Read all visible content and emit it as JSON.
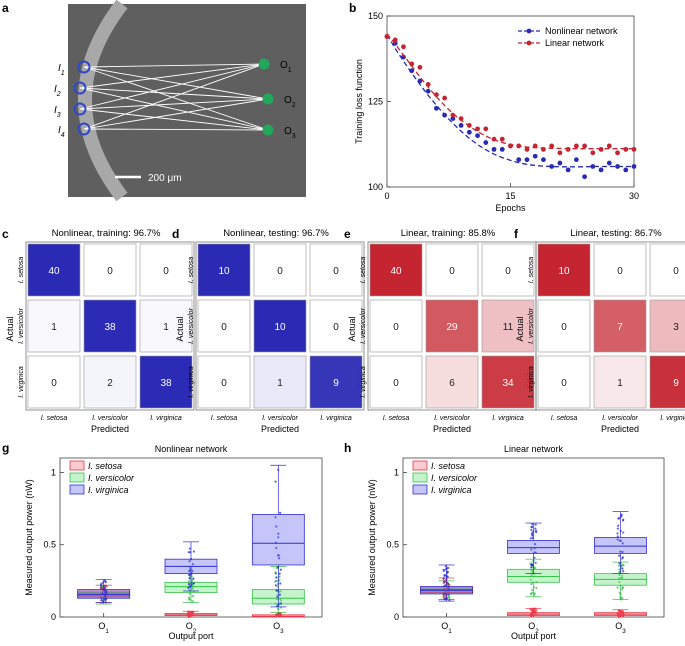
{
  "panels": {
    "a": "a",
    "b": "b",
    "c": "c",
    "d": "d",
    "e": "e",
    "f": "f",
    "g": "g",
    "h": "h"
  },
  "micro": {
    "inputs": [
      "I",
      "I",
      "I",
      "I"
    ],
    "input_subs": [
      "1",
      "2",
      "3",
      "4"
    ],
    "outputs": [
      "O",
      "O",
      "O"
    ],
    "output_subs": [
      "1",
      "2",
      "3"
    ],
    "scalebar": "200 μm"
  },
  "colors": {
    "nonlinear": "#2a2ab5",
    "linear": "#c52530",
    "setosa": "#e8384a",
    "versicolor": "#37c24a",
    "virginica": "#2f2fd6"
  },
  "chart_data": [
    {
      "id": "b",
      "type": "scatter",
      "xlabel": "Epochs",
      "ylabel": "Training loss function",
      "xlim": [
        0,
        30
      ],
      "ylim": [
        100,
        150
      ],
      "xticks": [
        0,
        15,
        30
      ],
      "yticks": [
        100,
        125,
        150
      ],
      "series": [
        {
          "name": "Nonlinear network",
          "values": [
            144,
            142,
            138,
            134,
            131,
            128,
            123,
            121,
            120,
            118,
            116,
            115,
            113,
            111,
            111,
            112,
            108,
            108,
            109,
            108,
            106,
            107,
            105,
            108,
            103,
            106,
            105,
            107,
            106,
            105,
            106
          ],
          "fit": [
            144.5,
            140.5,
            136.8,
            133.3,
            130.0,
            126.8,
            123.9,
            121.1,
            118.6,
            116.3,
            114.2,
            112.4,
            110.9,
            109.6,
            108.6,
            107.8,
            107.1,
            106.6,
            106.3,
            106.1,
            106.0,
            105.9,
            105.9,
            105.9,
            105.9,
            106.0,
            106.0,
            106.0,
            106.0,
            106.0,
            106.0
          ]
        },
        {
          "name": "Linear network",
          "values": [
            144,
            143,
            141,
            136,
            135,
            130,
            127,
            126,
            121,
            120,
            118,
            117,
            117,
            114,
            114,
            112,
            112,
            111,
            112,
            111,
            112,
            110,
            111,
            112,
            112,
            110,
            111,
            112,
            110,
            111,
            111
          ],
          "fit": [
            144.8,
            141.8,
            138.6,
            135.4,
            132.2,
            129.2,
            126.4,
            123.8,
            121.5,
            119.5,
            117.8,
            116.2,
            114.9,
            113.8,
            113.0,
            112.4,
            112.0,
            111.7,
            111.5,
            111.4,
            111.3,
            111.3,
            111.2,
            111.2,
            111.2,
            111.2,
            111.2,
            111.2,
            111.2,
            111.2,
            111.2
          ]
        }
      ]
    },
    {
      "id": "c",
      "type": "heatmap",
      "title": "Nonlinear, training: 96.7%",
      "color": "nonlinear",
      "matrix": [
        [
          40,
          0,
          0
        ],
        [
          1,
          38,
          1
        ],
        [
          0,
          2,
          38
        ]
      ]
    },
    {
      "id": "d",
      "type": "heatmap",
      "title": "Nonlinear, testing: 96.7%",
      "color": "nonlinear",
      "matrix": [
        [
          10,
          0,
          0
        ],
        [
          0,
          10,
          0
        ],
        [
          0,
          1,
          9
        ]
      ]
    },
    {
      "id": "e",
      "type": "heatmap",
      "title": "Linear, training: 85.8%",
      "color": "linear",
      "matrix": [
        [
          40,
          0,
          0
        ],
        [
          0,
          29,
          11
        ],
        [
          0,
          6,
          34
        ]
      ]
    },
    {
      "id": "f",
      "type": "heatmap",
      "title": "Linear, testing: 86.7%",
      "color": "linear",
      "matrix": [
        [
          10,
          0,
          0
        ],
        [
          0,
          7,
          3
        ],
        [
          0,
          1,
          9
        ]
      ]
    },
    {
      "id": "g",
      "type": "box",
      "title": "Nonlinear network",
      "xlabel": "Output port",
      "ylabel": "Measured output power (nW)",
      "ylim": [
        0,
        1.1
      ],
      "yticks": [
        0,
        0.5,
        1
      ],
      "categories": [
        "O",
        "O",
        "O"
      ],
      "category_subs": [
        "1",
        "2",
        "3"
      ],
      "legend": [
        "I. setosa",
        "I. versicolor",
        "I. virginica"
      ],
      "boxes": [
        {
          "port": 0,
          "cls": "versicolor",
          "q1": 0.13,
          "med": 0.15,
          "q3": 0.17,
          "lo": 0.09,
          "hi": 0.22
        },
        {
          "port": 0,
          "cls": "setosa",
          "q1": 0.14,
          "med": 0.16,
          "q3": 0.18,
          "lo": 0.1,
          "hi": 0.22
        },
        {
          "port": 0,
          "cls": "virginica",
          "q1": 0.13,
          "med": 0.155,
          "q3": 0.19,
          "lo": 0.1,
          "hi": 0.26
        },
        {
          "port": 1,
          "cls": "setosa",
          "q1": 0.01,
          "med": 0.015,
          "q3": 0.025,
          "lo": 0.0,
          "hi": 0.04
        },
        {
          "port": 1,
          "cls": "versicolor",
          "q1": 0.17,
          "med": 0.21,
          "q3": 0.24,
          "lo": 0.1,
          "hi": 0.35
        },
        {
          "port": 1,
          "cls": "virginica",
          "q1": 0.3,
          "med": 0.35,
          "q3": 0.4,
          "lo": 0.18,
          "hi": 0.52
        },
        {
          "port": 2,
          "cls": "setosa",
          "q1": 0.0,
          "med": 0.005,
          "q3": 0.015,
          "lo": 0.0,
          "hi": 0.03
        },
        {
          "port": 2,
          "cls": "versicolor",
          "q1": 0.09,
          "med": 0.13,
          "q3": 0.19,
          "lo": 0.03,
          "hi": 0.35
        },
        {
          "port": 2,
          "cls": "virginica",
          "q1": 0.36,
          "med": 0.51,
          "q3": 0.71,
          "lo": 0.07,
          "hi": 1.05
        }
      ]
    },
    {
      "id": "h",
      "type": "box",
      "title": "Linear network",
      "xlabel": "Output port",
      "ylabel": "Measured output power (nW)",
      "ylim": [
        0,
        1.1
      ],
      "yticks": [
        0,
        0.5,
        1
      ],
      "categories": [
        "O",
        "O",
        "O"
      ],
      "category_subs": [
        "1",
        "2",
        "3"
      ],
      "legend": [
        "I. setosa",
        "I. versicolor",
        "I. virginica"
      ],
      "boxes": [
        {
          "port": 0,
          "cls": "versicolor",
          "q1": 0.16,
          "med": 0.18,
          "q3": 0.2,
          "lo": 0.12,
          "hi": 0.25
        },
        {
          "port": 0,
          "cls": "setosa",
          "q1": 0.17,
          "med": 0.19,
          "q3": 0.21,
          "lo": 0.12,
          "hi": 0.27
        },
        {
          "port": 0,
          "cls": "virginica",
          "q1": 0.16,
          "med": 0.185,
          "q3": 0.21,
          "lo": 0.11,
          "hi": 0.36
        },
        {
          "port": 1,
          "cls": "setosa",
          "q1": 0.01,
          "med": 0.02,
          "q3": 0.03,
          "lo": 0.0,
          "hi": 0.06
        },
        {
          "port": 1,
          "cls": "versicolor",
          "q1": 0.24,
          "med": 0.28,
          "q3": 0.33,
          "lo": 0.14,
          "hi": 0.4
        },
        {
          "port": 1,
          "cls": "virginica",
          "q1": 0.44,
          "med": 0.48,
          "q3": 0.53,
          "lo": 0.3,
          "hi": 0.65
        },
        {
          "port": 2,
          "cls": "setosa",
          "q1": 0.01,
          "med": 0.02,
          "q3": 0.03,
          "lo": 0.0,
          "hi": 0.05
        },
        {
          "port": 2,
          "cls": "versicolor",
          "q1": 0.22,
          "med": 0.26,
          "q3": 0.3,
          "lo": 0.12,
          "hi": 0.38
        },
        {
          "port": 2,
          "cls": "virginica",
          "q1": 0.44,
          "med": 0.49,
          "q3": 0.55,
          "lo": 0.3,
          "hi": 0.73
        }
      ]
    }
  ],
  "matrix_labels": {
    "actual": "Actual",
    "predicted": "Predicted",
    "classes": [
      "I. setosa",
      "I. versicolor",
      "I. virginica"
    ]
  }
}
